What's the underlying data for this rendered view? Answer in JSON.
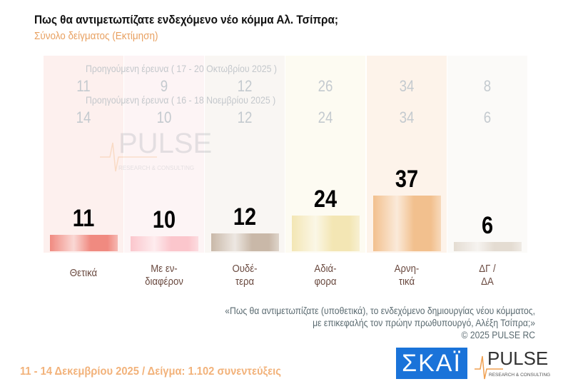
{
  "title": "Πως θα αντιμετωπίζατε ενδεχόμενο νέο κόμμα Αλ. Τσίπρα;",
  "subtitle": "Σύνολο δείγματος  (Εκτίμηση)",
  "chart_data": {
    "type": "bar",
    "categories": [
      "Θετικά",
      "Με εν-\nδιαφέρον",
      "Ουδέ-\nτερα",
      "Αδιά-\nφορα",
      "Αρνη-\nτικά",
      "ΔΓ /\nΔΑ"
    ],
    "values": [
      11,
      10,
      12,
      24,
      37,
      6
    ],
    "previous": [
      {
        "label": "Προηγούμενη έρευνα ( 17 - 20 Οκτωβρίου 2025 )",
        "values": [
          11,
          9,
          12,
          26,
          34,
          8
        ]
      },
      {
        "label": "Προηγούμενη έρευνα ( 16 - 18 Νοεμβρίου 2025 )",
        "values": [
          14,
          10,
          12,
          24,
          34,
          6
        ]
      }
    ],
    "colors": [
      "#f08a80",
      "#fbc6cc",
      "#c9b8a8",
      "#f3e6b4",
      "#f2c08e",
      "#e4dcd2"
    ],
    "column_bg": [
      "#fdf0ee",
      "#fdf4f5",
      "#f9f6f3",
      "#fdfbf2",
      "#fdf3ea",
      "#fbfaf8"
    ]
  },
  "note": {
    "line1": "«Πως θα αντιμετωπίζατε (υποθετικά), το ενδεχόμενο δημιουργίας νέου κόμματος,",
    "line2": "με επικεφαλής τον πρώην πρωθυπουργό, Αλέξη Τσίπρα;»",
    "copyright": "©  2025  PULSE RC"
  },
  "footer": "11 - 14 Δεκεμβρίου 2025  /  Δείγμα:  1.102 συνεντεύξεις",
  "logos": {
    "skai": "ΣΚΑΪ",
    "pulse": "PULSE",
    "pulse_sub": "RESEARCH & CONSULTING"
  }
}
